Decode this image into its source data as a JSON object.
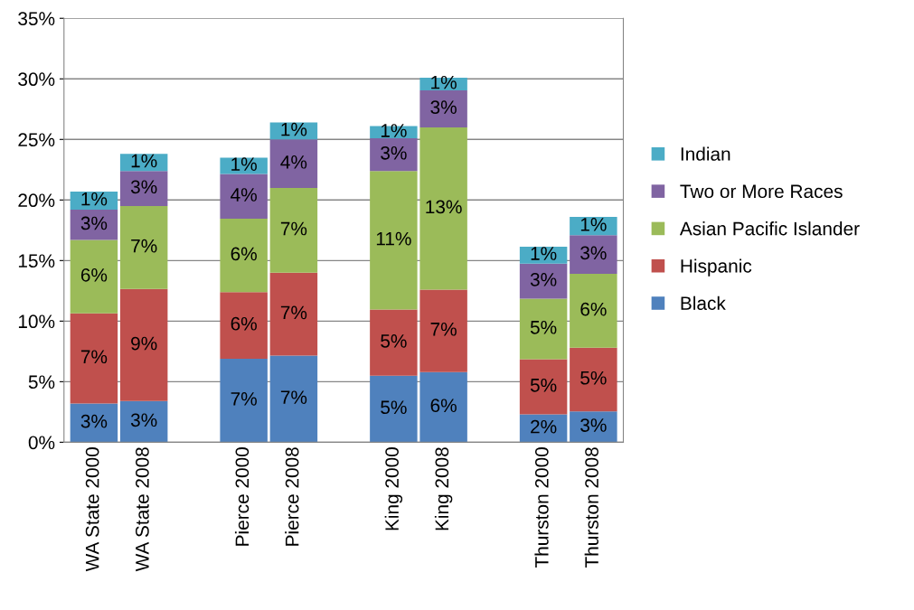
{
  "chart_data": {
    "type": "bar",
    "stacked": true,
    "categories": [
      "WA State 2000",
      "WA State 2008",
      null,
      "Pierce 2000",
      "Pierce 2008",
      null,
      "King 2000",
      "King 2008",
      null,
      "Thurston 2000",
      "Thurston 2008"
    ],
    "series": [
      {
        "name": "Black",
        "color": "#4f81bd",
        "values": [
          3.2,
          3.4,
          null,
          6.9,
          7.15,
          null,
          5.5,
          5.8,
          null,
          2.3,
          2.55
        ],
        "value_labels": [
          "3%",
          "3%",
          null,
          "7%",
          "7%",
          null,
          "5%",
          "6%",
          null,
          "2%",
          "3%"
        ]
      },
      {
        "name": "Hispanic",
        "color": "#c0504d",
        "values": [
          7.45,
          9.25,
          null,
          5.5,
          6.85,
          null,
          5.45,
          6.8,
          null,
          4.55,
          5.25
        ],
        "value_labels": [
          "7%",
          "9%",
          null,
          "6%",
          "7%",
          null,
          "5%",
          "7%",
          null,
          "5%",
          "5%"
        ]
      },
      {
        "name": "Asian Pacific Islander",
        "color": "#9bbb59",
        "values": [
          6.05,
          6.85,
          null,
          6.05,
          7.0,
          null,
          11.45,
          13.4,
          null,
          5.0,
          6.1
        ],
        "value_labels": [
          "6%",
          "7%",
          null,
          "6%",
          "7%",
          null,
          "11%",
          "13%",
          null,
          "5%",
          "6%"
        ]
      },
      {
        "name": "Two or More Races",
        "color": "#8064a2",
        "values": [
          2.5,
          2.9,
          null,
          3.7,
          4.0,
          null,
          2.7,
          3.05,
          null,
          2.9,
          3.2
        ],
        "value_labels": [
          "3%",
          "3%",
          null,
          "4%",
          "4%",
          null,
          "3%",
          "3%",
          null,
          "3%",
          "3%"
        ]
      },
      {
        "name": "Indian",
        "color": "#4bacc6",
        "values": [
          1.5,
          1.4,
          null,
          1.35,
          1.4,
          null,
          1.0,
          1.05,
          null,
          1.4,
          1.5
        ],
        "value_labels": [
          "1%",
          "1%",
          null,
          "1%",
          "1%",
          null,
          "1%",
          "1%",
          null,
          "1%",
          "1%"
        ]
      }
    ],
    "ylim": [
      0,
      35
    ],
    "yticks": [
      {
        "value": 0,
        "label": "0%"
      },
      {
        "value": 5,
        "label": "5%"
      },
      {
        "value": 10,
        "label": "10%"
      },
      {
        "value": 15,
        "label": "15%"
      },
      {
        "value": 20,
        "label": "20%"
      },
      {
        "value": 25,
        "label": "25%"
      },
      {
        "value": 30,
        "label": "30%"
      },
      {
        "value": 35,
        "label": "35%"
      }
    ],
    "grid": "y",
    "legend": "right"
  }
}
